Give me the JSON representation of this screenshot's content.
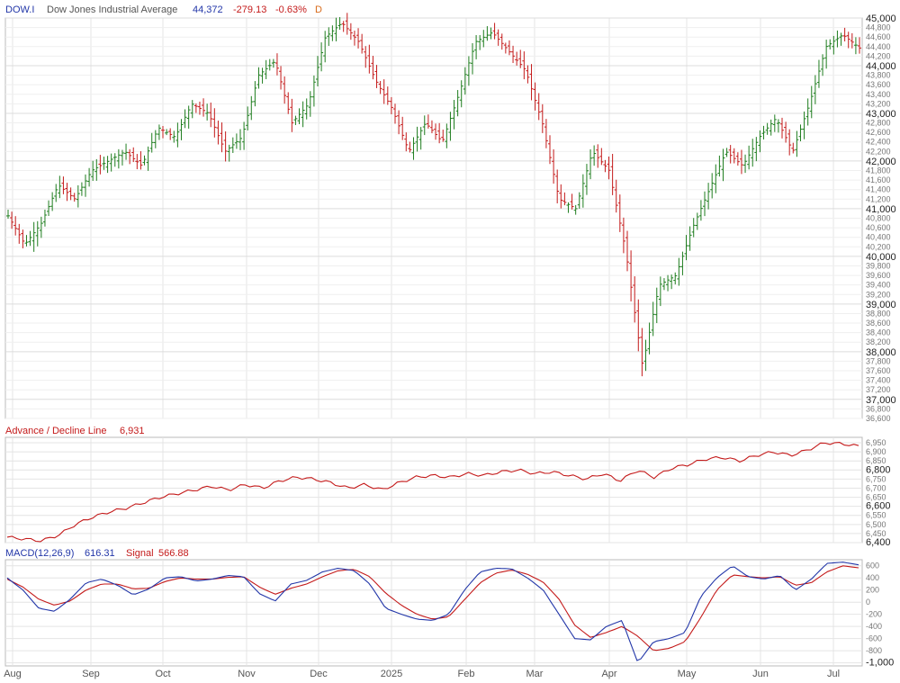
{
  "header": {
    "symbol": "DOW.I",
    "name": "Dow Jones Industrial Average",
    "last": "44,372",
    "change": "-279.13",
    "change_pct": "-0.63%",
    "period": "D"
  },
  "ad_header": {
    "label": "Advance / Decline Line",
    "value": "6,931"
  },
  "macd_header": {
    "label": "MACD(12,26,9)",
    "value": "616.31",
    "signal_label": "Signal",
    "signal_value": "566.88"
  },
  "colors": {
    "up": "#1e7d1e",
    "down": "#c41a1a",
    "ad_line": "#c41a1a",
    "macd": "#2236a8",
    "signal": "#c41a1a",
    "grid": "#e4e4e4"
  },
  "chart_data": [
    {
      "type": "ohlc",
      "panel": "price",
      "title": "Dow Jones Industrial Average",
      "ylim": [
        36600,
        45000
      ],
      "y_ticks_major": [
        37000,
        38000,
        39000,
        40000,
        41000,
        42000,
        43000,
        44000,
        45000
      ],
      "y_ticks_major_labels": [
        "37,000",
        "38,000",
        "39,000",
        "40,000",
        "41,000",
        "42,000",
        "43,000",
        "44,000",
        "45,000"
      ],
      "y_ticks_minor": [
        36600,
        36800,
        37200,
        37400,
        37600,
        37800,
        38200,
        38400,
        38600,
        38800,
        39200,
        39400,
        39600,
        39800,
        40200,
        40400,
        40600,
        40800,
        41200,
        41400,
        41600,
        41800,
        42200,
        42400,
        42600,
        42800,
        43200,
        43400,
        43600,
        43800,
        44200,
        44400,
        44600,
        44800
      ],
      "y_ticks_minor_labels": [
        "36,600",
        "36,800",
        "37,200",
        "37,400",
        "37,600",
        "37,800",
        "38,200",
        "38,400",
        "38,600",
        "38,800",
        "39,200",
        "39,400",
        "39,600",
        "39,800",
        "40,200",
        "40,400",
        "40,600",
        "40,800",
        "41,200",
        "41,400",
        "41,600",
        "41,800",
        "42,200",
        "42,400",
        "42,600",
        "42,800",
        "43,200",
        "43,400",
        "43,600",
        "43,800",
        "44,200",
        "44,400",
        "44,600",
        "44,800"
      ],
      "x_axis": [
        "Aug",
        "Sep",
        "Oct",
        "Nov",
        "Dec",
        "2025",
        "Feb",
        "Mar",
        "Apr",
        "May",
        "Jun",
        "Jul"
      ],
      "grid": true,
      "close_keypoints": [
        40850,
        40250,
        40700,
        41500,
        41200,
        41800,
        42000,
        42200,
        41900,
        42700,
        42500,
        43200,
        43000,
        42200,
        42500,
        43800,
        44100,
        42800,
        43200,
        44600,
        44900,
        44500,
        43700,
        43100,
        42200,
        42800,
        42400,
        43400,
        44500,
        44700,
        44300,
        43900,
        42800,
        41200,
        41000,
        42200,
        41800,
        40100,
        37700,
        39400,
        39600,
        40600,
        41400,
        42200,
        41900,
        42500,
        42900,
        42200,
        43200,
        44400,
        44650,
        44370
      ],
      "last_close": 44372
    },
    {
      "type": "line",
      "panel": "advance-decline",
      "series": [
        {
          "name": "Advance / Decline Line",
          "last": 6931
        }
      ],
      "ylim": [
        6400,
        6980
      ],
      "y_ticks": [
        6400,
        6450,
        6500,
        6550,
        6600,
        6650,
        6700,
        6750,
        6800,
        6850,
        6900,
        6950
      ],
      "y_tick_labels": [
        "6,400",
        "6,450",
        "6,500",
        "6,550",
        "6,600",
        "6,650",
        "6,700",
        "6,750",
        "6,800",
        "6,850",
        "6,900",
        "6,950"
      ],
      "keypoints": [
        6430,
        6420,
        6410,
        6440,
        6500,
        6540,
        6570,
        6590,
        6620,
        6650,
        6670,
        6690,
        6710,
        6690,
        6720,
        6700,
        6740,
        6760,
        6750,
        6730,
        6700,
        6720,
        6690,
        6730,
        6760,
        6770,
        6760,
        6780,
        6770,
        6790,
        6800,
        6780,
        6790,
        6770,
        6750,
        6780,
        6740,
        6800,
        6760,
        6810,
        6830,
        6860,
        6870,
        6850,
        6880,
        6900,
        6880,
        6910,
        6950,
        6945,
        6931
      ]
    },
    {
      "type": "line",
      "panel": "macd",
      "series": [
        {
          "name": "MACD(12,26,9)",
          "last": 616.31
        },
        {
          "name": "Signal",
          "last": 566.88
        }
      ],
      "ylim": [
        -1050,
        700
      ],
      "y_ticks": [
        -1000,
        -800,
        -600,
        -400,
        -200,
        0,
        200,
        400,
        600
      ],
      "y_tick_labels": [
        "-1,000",
        "-800",
        "-600",
        "-400",
        "-200",
        "0",
        "200",
        "400",
        "600"
      ],
      "macd_keypoints": [
        400,
        200,
        -100,
        -150,
        50,
        320,
        380,
        280,
        120,
        220,
        400,
        420,
        350,
        380,
        440,
        420,
        140,
        20,
        300,
        360,
        500,
        560,
        520,
        300,
        -100,
        -200,
        -280,
        -300,
        -200,
        200,
        500,
        560,
        550,
        400,
        200,
        -200,
        -600,
        -620,
        -400,
        -300,
        -1000,
        -650,
        -600,
        -500,
        100,
        400,
        600,
        420,
        380,
        440,
        200,
        380,
        640,
        660,
        616
      ],
      "signal_keypoints": [
        380,
        250,
        50,
        -50,
        20,
        200,
        300,
        300,
        220,
        230,
        340,
        400,
        380,
        380,
        410,
        420,
        250,
        130,
        230,
        300,
        420,
        520,
        540,
        420,
        150,
        -50,
        -200,
        -280,
        -240,
        40,
        320,
        480,
        530,
        460,
        330,
        50,
        -380,
        -580,
        -500,
        -400,
        -560,
        -800,
        -760,
        -650,
        -250,
        200,
        450,
        420,
        400,
        420,
        280,
        320,
        500,
        600,
        567
      ]
    }
  ]
}
